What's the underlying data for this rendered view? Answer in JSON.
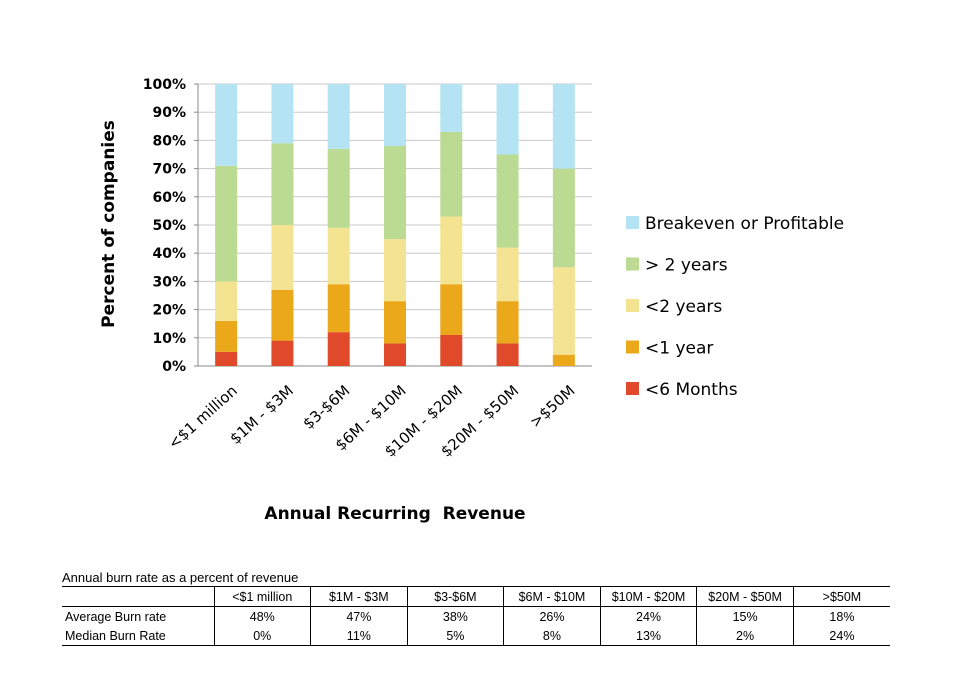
{
  "chart_data": {
    "type": "bar",
    "stacked": true,
    "percent_stacked": true,
    "categories": [
      "<$1 million",
      "$1M - $3M",
      "$3-$6M",
      "$6M - $10M",
      "$10M - $20M",
      "$20M - $50M",
      ">$50M"
    ],
    "series": [
      {
        "name": "<6 Months",
        "color": "#e04a2b",
        "values": [
          5,
          9,
          12,
          8,
          11,
          8,
          0
        ]
      },
      {
        "name": "<1 year",
        "color": "#eaa81a",
        "values": [
          11,
          18,
          17,
          15,
          18,
          15,
          4
        ]
      },
      {
        "name": "<2 years",
        "color": "#f4e391",
        "values": [
          14,
          23,
          20,
          22,
          24,
          19,
          31
        ]
      },
      {
        "name": "> 2 years",
        "color": "#bbda92",
        "values": [
          41,
          29,
          28,
          33,
          30,
          33,
          35
        ]
      },
      {
        "name": "Breakeven or Profitable",
        "color": "#b4e4f3",
        "values": [
          29,
          21,
          23,
          22,
          17,
          25,
          30
        ]
      }
    ],
    "yticks": [
      "0%",
      "10%",
      "20%",
      "30%",
      "40%",
      "50%",
      "60%",
      "70%",
      "80%",
      "90%",
      "100%"
    ],
    "ylim": [
      0,
      100
    ],
    "xlabel": "Annual Recurring  Revenue",
    "ylabel": "Percent of companies",
    "legend_position": "right",
    "legend_order": [
      "Breakeven or Profitable",
      "> 2 years",
      "<2 years",
      "<1 year",
      "<6 Months"
    ],
    "grid": true
  },
  "table": {
    "title": "Annual burn rate as a percent of revenue",
    "header_blank": "",
    "headers": [
      "<$1 million",
      "$1M - $3M",
      "$3-$6M",
      "$6M - $10M",
      "$10M - $20M",
      "$20M - $50M",
      ">$50M"
    ],
    "rows": [
      {
        "label": "Average Burn rate",
        "values": [
          "48%",
          "47%",
          "38%",
          "26%",
          "24%",
          "15%",
          "18%"
        ]
      },
      {
        "label": "Median Burn Rate",
        "values": [
          "0%",
          "11%",
          "5%",
          "8%",
          "13%",
          "2%",
          "24%"
        ]
      }
    ]
  }
}
